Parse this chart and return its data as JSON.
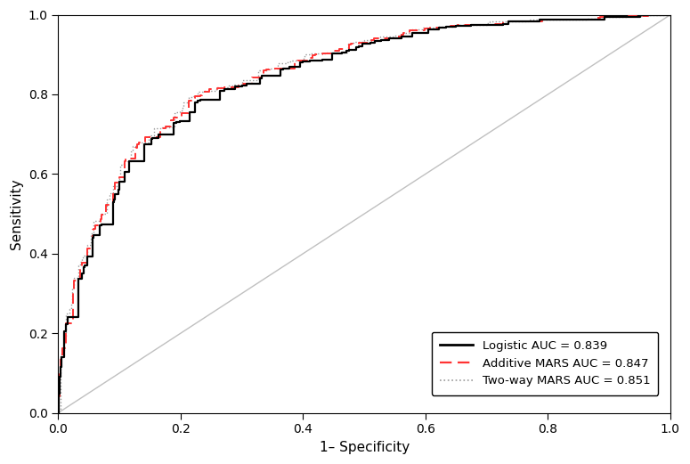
{
  "title": "",
  "xlabel": "1– Specificity",
  "ylabel": "Sensitivity",
  "xlim": [
    0.0,
    1.0
  ],
  "ylim": [
    0.0,
    1.0
  ],
  "xticks": [
    0.0,
    0.2,
    0.4,
    0.6,
    0.8,
    1.0
  ],
  "yticks": [
    0.0,
    0.2,
    0.4,
    0.6,
    0.8,
    1.0
  ],
  "xtick_labels": [
    "0.0",
    "0.2",
    "0.4",
    "0.6",
    "0.8",
    "1.0"
  ],
  "ytick_labels": [
    "0.0",
    "0.2",
    "0.4",
    "0.6",
    "0.8",
    "1.0"
  ],
  "legend_labels": [
    "Logistic AUC = 0.839",
    "Additive MARS AUC = 0.847",
    "Two-way MARS AUC = 0.851"
  ],
  "line_colors": [
    "#000000",
    "#FF3333",
    "#999999"
  ],
  "background_color": "#FFFFFF",
  "auc_logistic": 0.839,
  "auc_additive": 0.847,
  "auc_twoway": 0.851,
  "diagonal_color": "#C0C0C0",
  "fig_width": 7.75,
  "fig_height": 5.21,
  "dpi": 100
}
